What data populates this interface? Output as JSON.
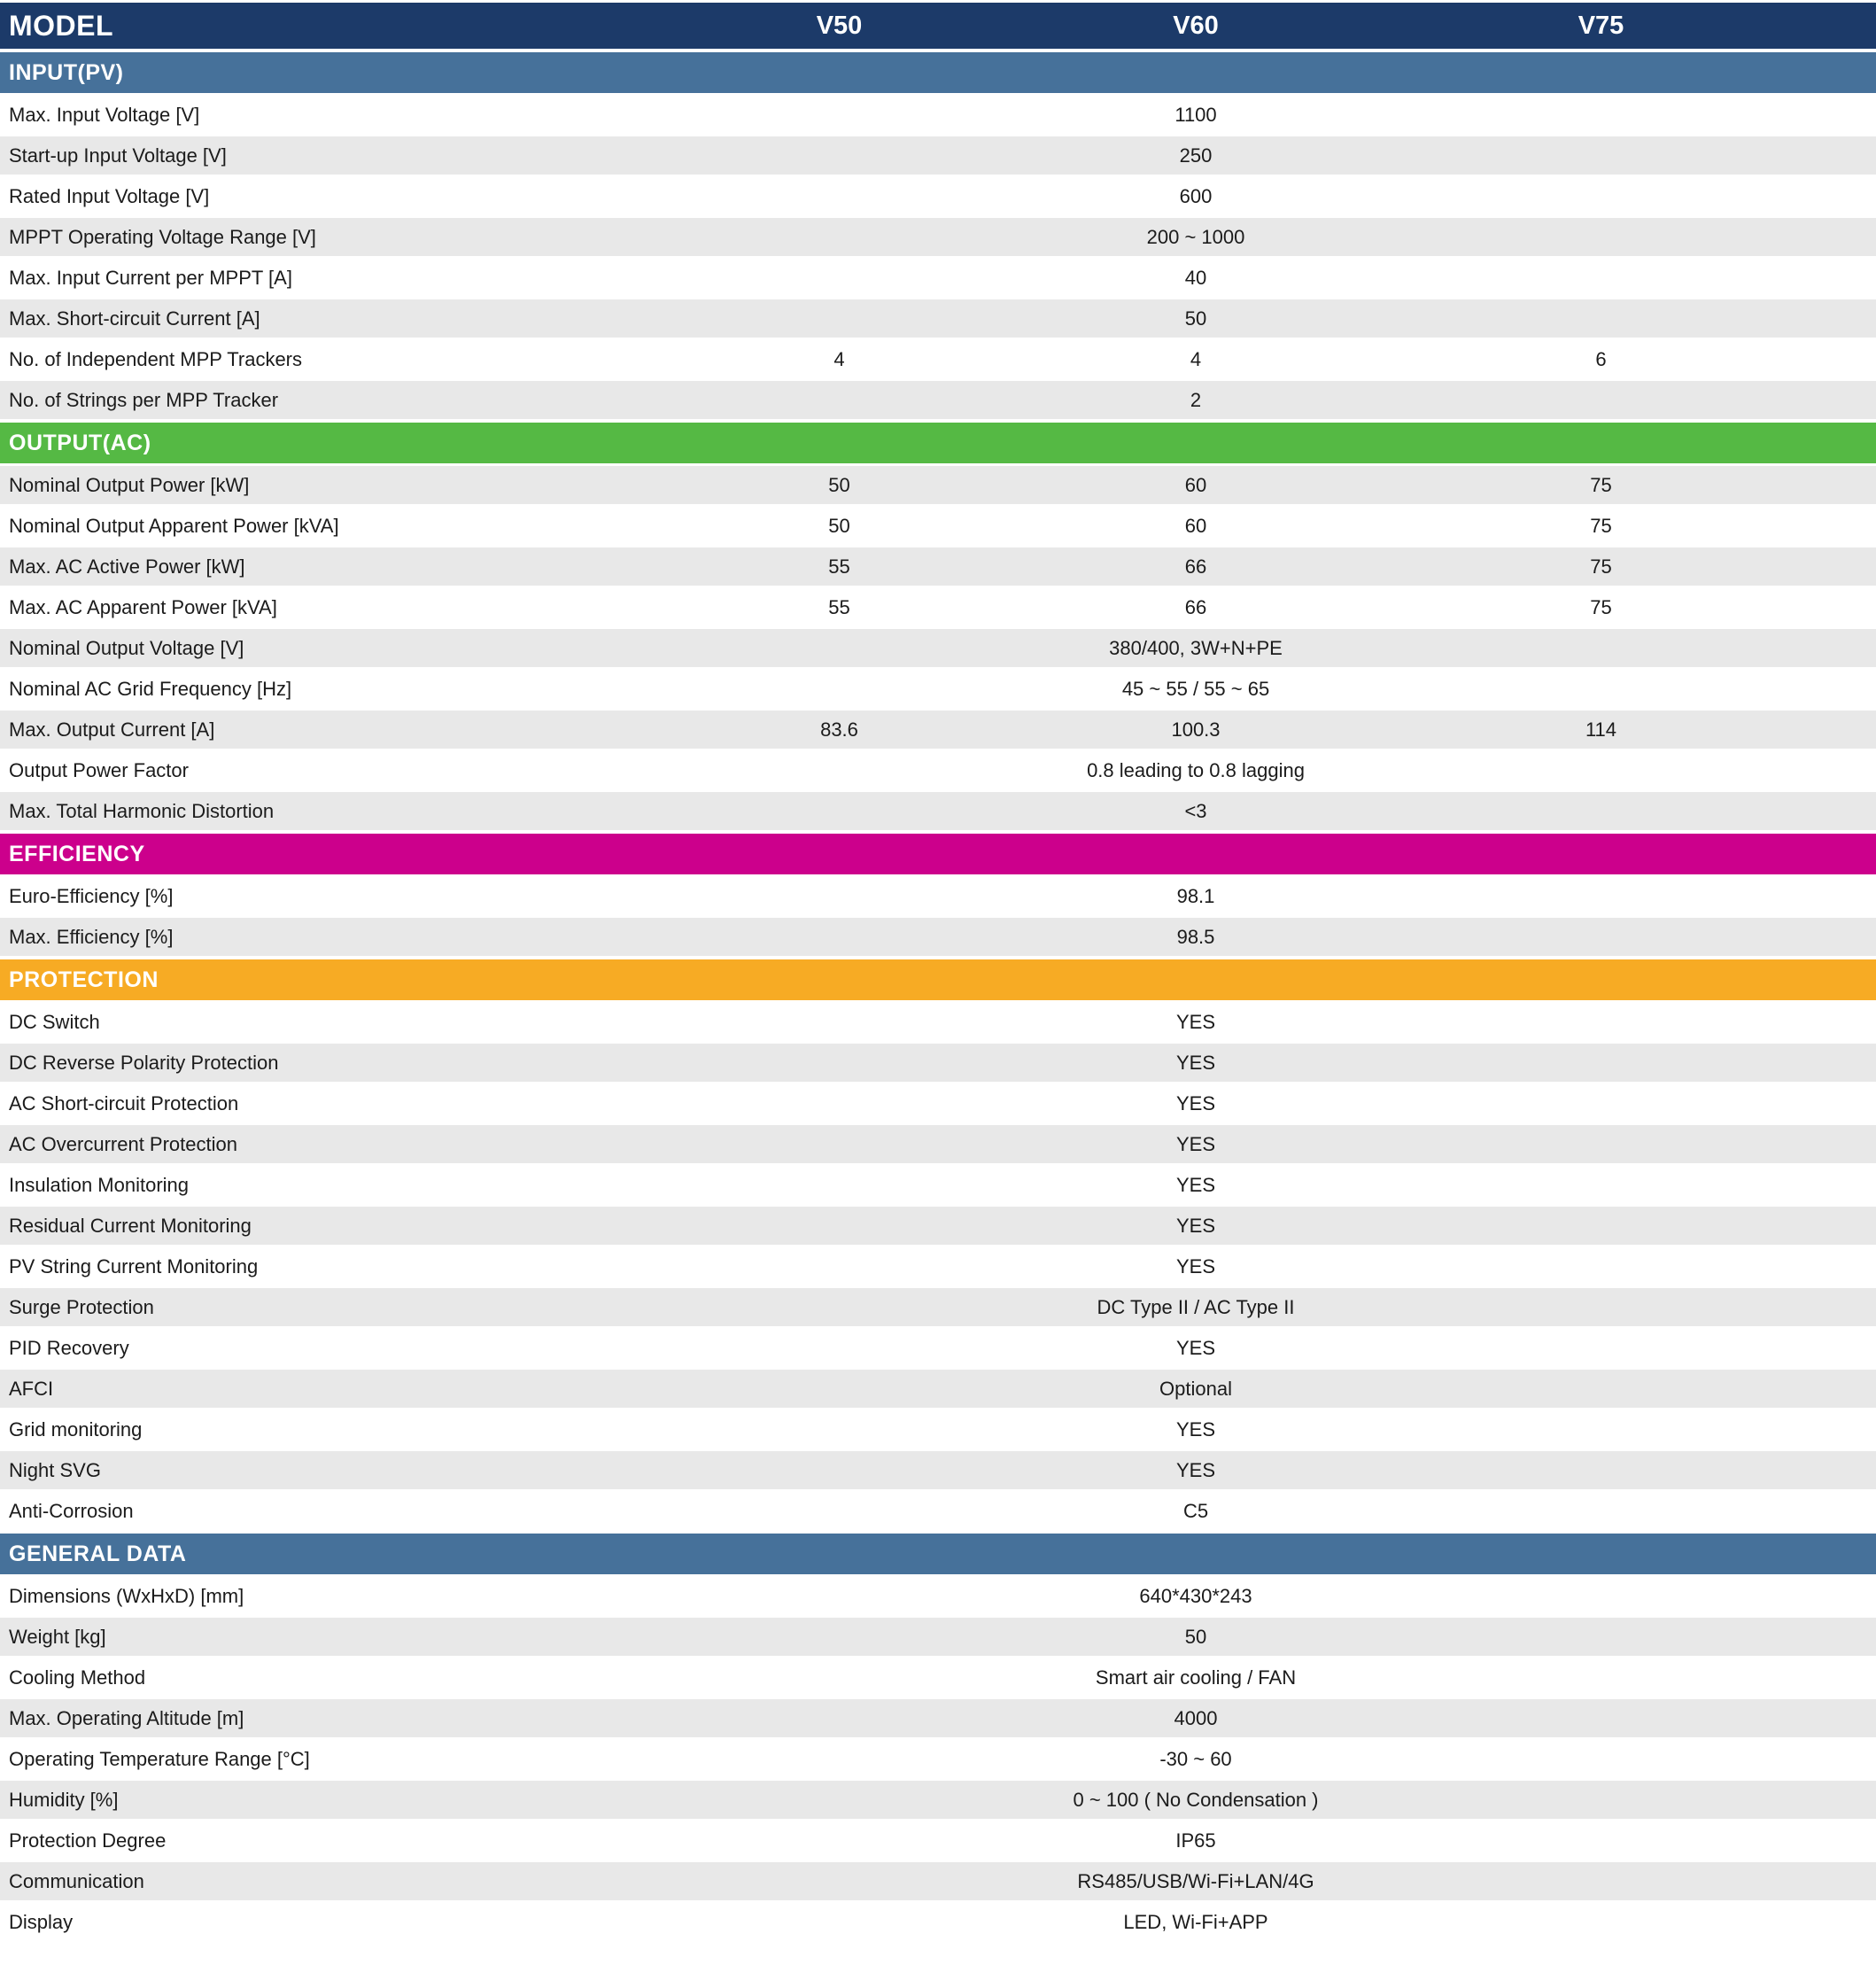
{
  "table": {
    "header": {
      "model_label": "MODEL",
      "columns": [
        "V50",
        "V60",
        "V75"
      ],
      "background": "#1c3a69",
      "text_color": "#ffffff"
    },
    "row_colors": {
      "shaded": "#e8e8e8",
      "plain": "#ffffff",
      "text": "#1b1b1b"
    },
    "sections": [
      {
        "title": "INPUT(PV)",
        "color": "#46719a",
        "first_row_shaded": false,
        "rows": [
          {
            "label": "Max. Input Voltage [V]",
            "span": "1100"
          },
          {
            "label": "Start-up Input Voltage [V]",
            "span": "250"
          },
          {
            "label": "Rated Input Voltage [V]",
            "span": "600"
          },
          {
            "label": "MPPT Operating Voltage Range [V]",
            "span": "200 ~ 1000"
          },
          {
            "label": "Max. Input Current per MPPT [A]",
            "span": "40"
          },
          {
            "label": "Max. Short-circuit Current [A]",
            "span": "50"
          },
          {
            "label": "No. of Independent MPP Trackers",
            "values": [
              "4",
              "4",
              "6"
            ]
          },
          {
            "label": "No. of Strings per MPP Tracker",
            "span": "2"
          }
        ]
      },
      {
        "title": "OUTPUT(AC)",
        "color": "#55b944",
        "first_row_shaded": true,
        "rows": [
          {
            "label": "Nominal Output Power [kW]",
            "values": [
              "50",
              "60",
              "75"
            ]
          },
          {
            "label": "Nominal Output Apparent Power [kVA]",
            "values": [
              "50",
              "60",
              "75"
            ]
          },
          {
            "label": "Max. AC Active Power [kW]",
            "values": [
              "55",
              "66",
              "75"
            ]
          },
          {
            "label": "Max. AC Apparent Power [kVA]",
            "values": [
              "55",
              "66",
              "75"
            ]
          },
          {
            "label": "Nominal Output Voltage [V]",
            "span": "380/400, 3W+N+PE"
          },
          {
            "label": "Nominal AC Grid Frequency [Hz]",
            "span": "45 ~ 55 / 55 ~ 65"
          },
          {
            "label": "Max. Output Current [A]",
            "values": [
              "83.6",
              "100.3",
              "114"
            ]
          },
          {
            "label": "Output Power Factor",
            "span": "0.8 leading to 0.8 lagging"
          },
          {
            "label": "Max. Total Harmonic Distortion",
            "span": "<3"
          }
        ]
      },
      {
        "title": "EFFICIENCY",
        "color": "#cc008c",
        "first_row_shaded": false,
        "rows": [
          {
            "label": "Euro-Efficiency [%]",
            "span": "98.1"
          },
          {
            "label": "Max. Efficiency [%]",
            "span": "98.5"
          }
        ]
      },
      {
        "title": "PROTECTION",
        "color": "#f7ab24",
        "first_row_shaded": false,
        "rows": [
          {
            "label": "DC Switch",
            "span": "YES"
          },
          {
            "label": "DC Reverse Polarity Protection",
            "span": "YES"
          },
          {
            "label": "AC Short-circuit Protection",
            "span": "YES"
          },
          {
            "label": "AC Overcurrent Protection",
            "span": "YES"
          },
          {
            "label": "Insulation Monitoring",
            "span": "YES"
          },
          {
            "label": "Residual Current Monitoring",
            "span": "YES"
          },
          {
            "label": "PV String Current Monitoring",
            "span": "YES"
          },
          {
            "label": "Surge Protection",
            "span": "DC Type II / AC Type II"
          },
          {
            "label": "PID Recovery",
            "span": "YES"
          },
          {
            "label": "AFCI",
            "span": "Optional"
          },
          {
            "label": "Grid monitoring",
            "span": "YES"
          },
          {
            "label": "Night SVG",
            "span": "YES"
          },
          {
            "label": "Anti-Corrosion",
            "span": "C5"
          }
        ]
      },
      {
        "title": "GENERAL DATA",
        "color": "#46719a",
        "first_row_shaded": false,
        "rows": [
          {
            "label": "Dimensions (WxHxD) [mm]",
            "span": "640*430*243"
          },
          {
            "label": "Weight [kg]",
            "span": "50"
          },
          {
            "label": "Cooling Method",
            "span": "Smart air cooling / FAN"
          },
          {
            "label": "Max. Operating Altitude [m]",
            "span": "4000"
          },
          {
            "label": "Operating Temperature Range [°C]",
            "span": "-30 ~ 60"
          },
          {
            "label": "Humidity [%]",
            "span": "0 ~ 100 ( No Condensation )"
          },
          {
            "label": "Protection Degree",
            "span": "IP65"
          },
          {
            "label": "Communication",
            "span": "RS485/USB/Wi-Fi+LAN/4G"
          },
          {
            "label": "Display",
            "span": "LED, Wi-Fi+APP"
          }
        ]
      }
    ]
  }
}
